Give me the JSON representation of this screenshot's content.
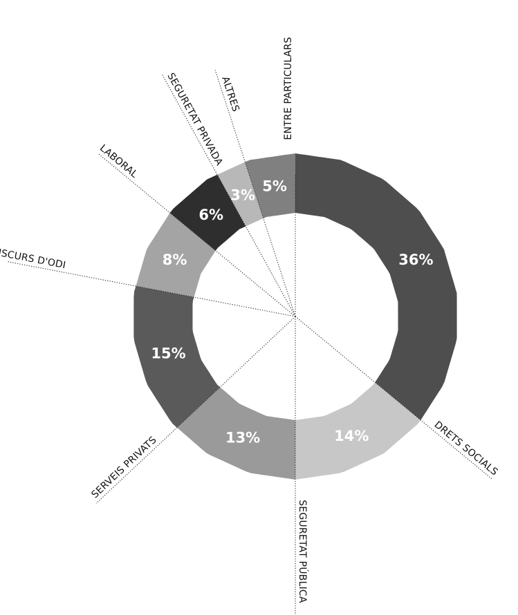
{
  "chart_data": {
    "type": "pie",
    "variant": "donut",
    "title": "",
    "slices": [
      {
        "label": "ENTRE PARTICULARS",
        "value": 36,
        "value_label": "36%",
        "color": "#4e4e4e"
      },
      {
        "label": "DRETS SOCIALS",
        "value": 14,
        "value_label": "14%",
        "color": "#c7c7c7"
      },
      {
        "label": "SEGURETAT PÚBLICA",
        "value": 13,
        "value_label": "13%",
        "color": "#9a9a9a"
      },
      {
        "label": "SERVEIS PRIVATS",
        "value": 15,
        "value_label": "15%",
        "color": "#5a5a5a"
      },
      {
        "label": "DISCURS D'ODI",
        "value": 8,
        "value_label": "8%",
        "color": "#a4a4a4"
      },
      {
        "label": "LABORAL",
        "value": 6,
        "value_label": "6%",
        "color": "#2e2e2e"
      },
      {
        "label": "SEGURETAT PRIVADA",
        "value": 3,
        "value_label": "3%",
        "color": "#b8b8b8"
      },
      {
        "label": "ALTRES",
        "value": 5,
        "value_label": "5%",
        "color": "#808080"
      }
    ]
  }
}
